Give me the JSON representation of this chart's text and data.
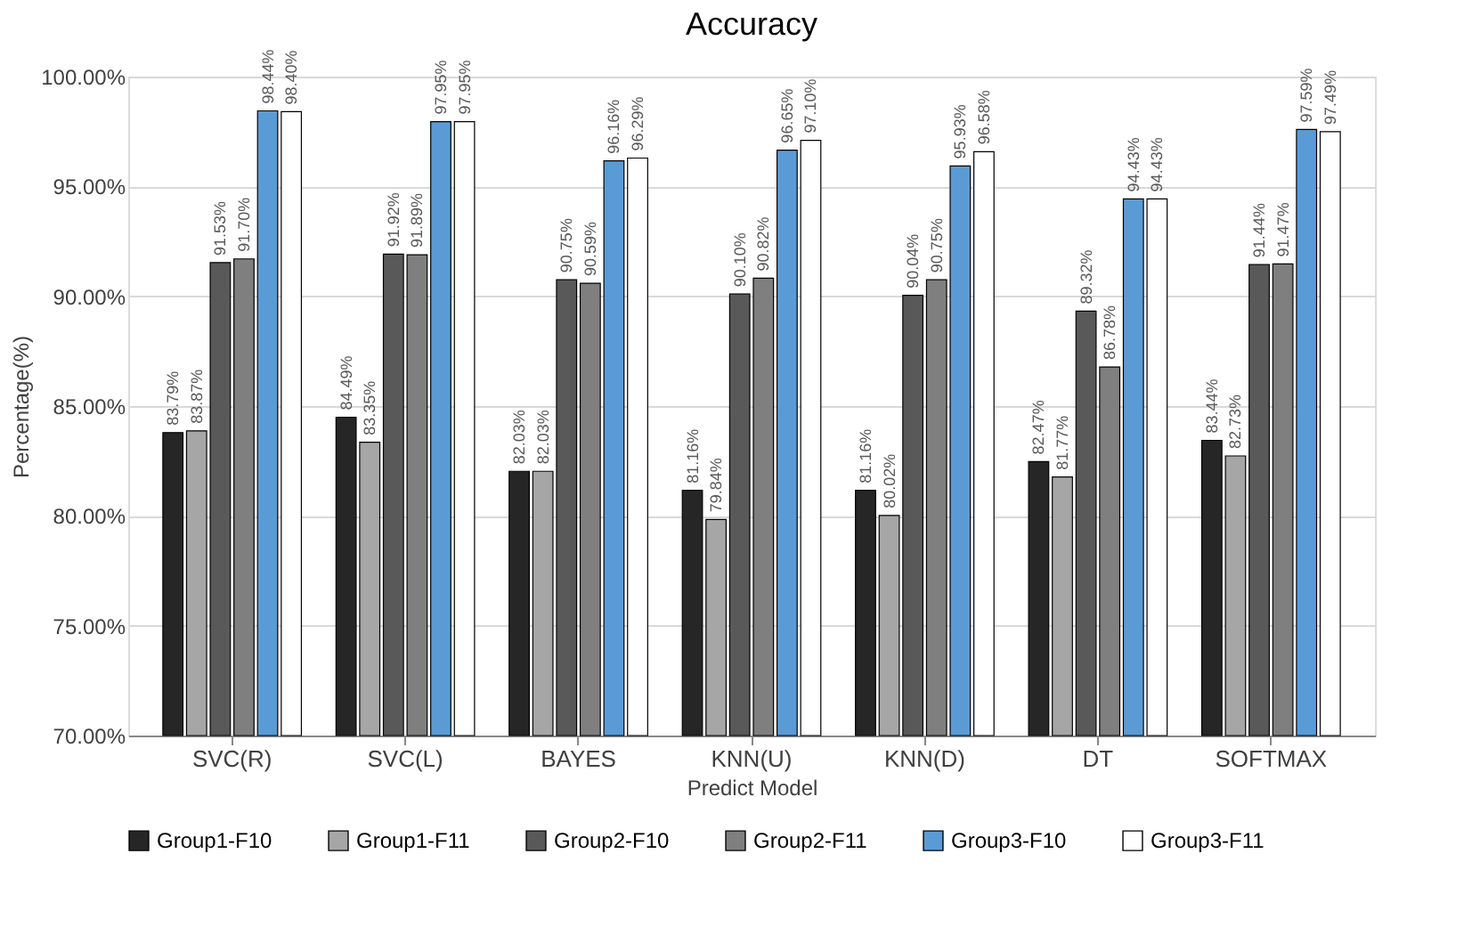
{
  "chart_data": {
    "type": "bar",
    "title": "Accuracy",
    "xlabel": "Predict Model",
    "ylabel": "Percentage(%)",
    "categories": [
      "SVC(R)",
      "SVC(L)",
      "BAYES",
      "KNN(U)",
      "KNN(D)",
      "DT",
      "SOFTMAX"
    ],
    "series": [
      {
        "name": "Group1-F10",
        "color": "#262626",
        "values": [
          83.79,
          84.49,
          82.03,
          81.16,
          81.16,
          82.47,
          83.44
        ],
        "value_labels": [
          "83.79%",
          "84.49%",
          "82.03%",
          "81.16%",
          "81.16%",
          "82.47%",
          "83.44%"
        ]
      },
      {
        "name": "Group1-F11",
        "color": "#a6a6a6",
        "values": [
          83.87,
          83.35,
          82.03,
          79.84,
          80.02,
          81.77,
          82.73
        ],
        "value_labels": [
          "83.87%",
          "83.35%",
          "82.03%",
          "79.84%",
          "80.02%",
          "81.77%",
          "82.73%"
        ]
      },
      {
        "name": "Group2-F10",
        "color": "#595959",
        "values": [
          91.53,
          91.92,
          90.75,
          90.1,
          90.04,
          89.32,
          91.44
        ],
        "value_labels": [
          "91.53%",
          "91.92%",
          "90.75%",
          "90.10%",
          "90.04%",
          "89.32%",
          "91.44%"
        ]
      },
      {
        "name": "Group2-F11",
        "color": "#7f7f7f",
        "values": [
          91.7,
          91.89,
          90.59,
          90.82,
          90.75,
          86.78,
          91.47
        ],
        "value_labels": [
          "91.70%",
          "91.89%",
          "90.59%",
          "90.82%",
          "90.75%",
          "86.78%",
          "91.47%"
        ]
      },
      {
        "name": "Group3-F10",
        "color": "#5b9bd5",
        "values": [
          98.44,
          97.95,
          96.16,
          96.65,
          95.93,
          94.43,
          97.59
        ],
        "value_labels": [
          "98.44%",
          "97.95%",
          "96.16%",
          "96.65%",
          "95.93%",
          "94.43%",
          "97.59%"
        ]
      },
      {
        "name": "Group3-F11",
        "color": "#ffffff",
        "values": [
          98.4,
          97.95,
          96.29,
          97.1,
          96.58,
          94.43,
          97.49
        ],
        "value_labels": [
          "98.40%",
          "97.95%",
          "96.29%",
          "97.10%",
          "96.58%",
          "94.43%",
          "97.49%"
        ]
      }
    ],
    "ylim": [
      70,
      100
    ],
    "yticks": [
      {
        "value": 70,
        "label": "70.00%"
      },
      {
        "value": 75,
        "label": "75.00%"
      },
      {
        "value": 80,
        "label": "80.00%"
      },
      {
        "value": 85,
        "label": "85.00%"
      },
      {
        "value": 90,
        "label": "90.00%"
      },
      {
        "value": 95,
        "label": "95.00%"
      },
      {
        "value": 100,
        "label": "100.00%"
      }
    ],
    "grid": "y",
    "legend": "bottom"
  }
}
